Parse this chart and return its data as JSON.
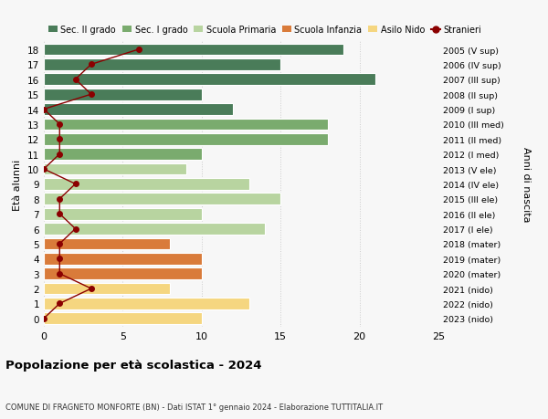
{
  "ages": [
    18,
    17,
    16,
    15,
    14,
    13,
    12,
    11,
    10,
    9,
    8,
    7,
    6,
    5,
    4,
    3,
    2,
    1,
    0
  ],
  "years": [
    "2005 (V sup)",
    "2006 (IV sup)",
    "2007 (III sup)",
    "2008 (II sup)",
    "2009 (I sup)",
    "2010 (III med)",
    "2011 (II med)",
    "2012 (I med)",
    "2013 (V ele)",
    "2014 (IV ele)",
    "2015 (III ele)",
    "2016 (II ele)",
    "2017 (I ele)",
    "2018 (mater)",
    "2019 (mater)",
    "2020 (mater)",
    "2021 (nido)",
    "2022 (nido)",
    "2023 (nido)"
  ],
  "bar_values": [
    19,
    15,
    21,
    10,
    12,
    18,
    18,
    10,
    9,
    13,
    15,
    10,
    14,
    8,
    10,
    10,
    8,
    13,
    10
  ],
  "bar_colors": [
    "#4a7c59",
    "#4a7c59",
    "#4a7c59",
    "#4a7c59",
    "#4a7c59",
    "#7aab6e",
    "#7aab6e",
    "#7aab6e",
    "#b8d4a0",
    "#b8d4a0",
    "#b8d4a0",
    "#b8d4a0",
    "#b8d4a0",
    "#d97b3a",
    "#d97b3a",
    "#d97b3a",
    "#f5d680",
    "#f5d680",
    "#f5d680"
  ],
  "stranieri_values": [
    6,
    3,
    2,
    3,
    0,
    1,
    1,
    1,
    0,
    2,
    1,
    1,
    2,
    1,
    1,
    1,
    3,
    1,
    0
  ],
  "stranieri_color": "#8b0000",
  "legend_labels": [
    "Sec. II grado",
    "Sec. I grado",
    "Scuola Primaria",
    "Scuola Infanzia",
    "Asilo Nido",
    "Stranieri"
  ],
  "legend_colors": [
    "#4a7c59",
    "#7aab6e",
    "#b8d4a0",
    "#d97b3a",
    "#f5d680",
    "#8b0000"
  ],
  "title": "Popolazione per età scolastica - 2024",
  "subtitle": "COMUNE DI FRAGNETO MONFORTE (BN) - Dati ISTAT 1° gennaio 2024 - Elaborazione TUTTITALIA.IT",
  "ylabel_left": "Età alunni",
  "ylabel_right": "Anni di nascita",
  "xlim": [
    0,
    25
  ],
  "xticks": [
    0,
    5,
    10,
    15,
    20,
    25
  ],
  "bg_color": "#f7f7f7"
}
